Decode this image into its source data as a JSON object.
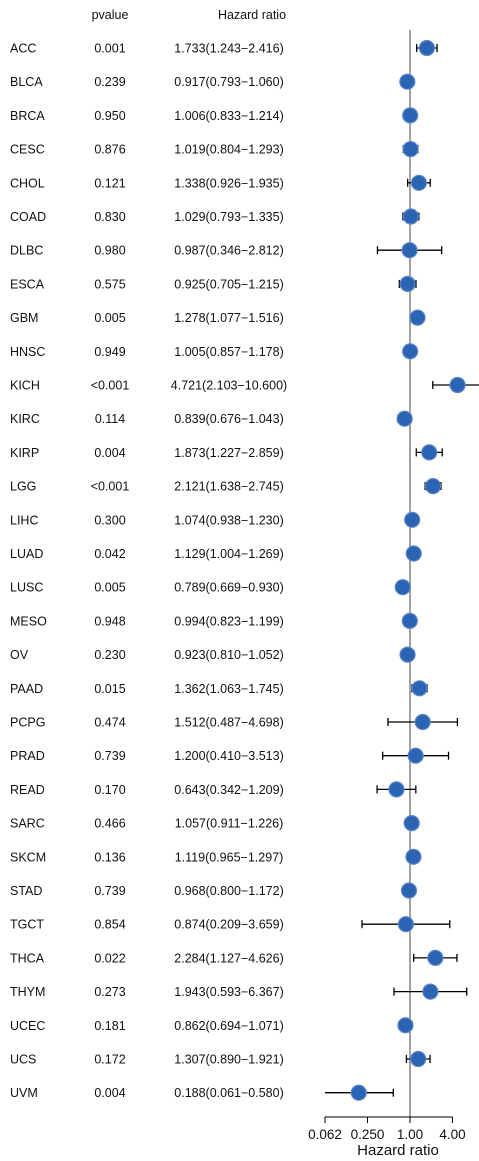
{
  "chart_data": {
    "type": "scatter",
    "subtype": "forest-plot",
    "header": {
      "pvalue": "pvalue",
      "hr": "Hazard ratio"
    },
    "xlabel": "Hazard ratio",
    "x_scale": "log2",
    "xlim": [
      0.0625,
      6.7
    ],
    "ticks": [
      "0.062",
      "0.250",
      "1.00",
      "4.00"
    ],
    "tick_values": [
      0.0625,
      0.25,
      1.0,
      4.0
    ],
    "reference_line": 1.0,
    "point_color": "#2c64b4",
    "rows": [
      {
        "label": "ACC",
        "pvalue": "0.001",
        "hr_text": "1.733(1.243−2.416)",
        "hr": 1.733,
        "lo": 1.243,
        "hi": 2.416
      },
      {
        "label": "BLCA",
        "pvalue": "0.239",
        "hr_text": "0.917(0.793−1.060)",
        "hr": 0.917,
        "lo": 0.793,
        "hi": 1.06
      },
      {
        "label": "BRCA",
        "pvalue": "0.950",
        "hr_text": "1.006(0.833−1.214)",
        "hr": 1.006,
        "lo": 0.833,
        "hi": 1.214
      },
      {
        "label": "CESC",
        "pvalue": "0.876",
        "hr_text": "1.019(0.804−1.293)",
        "hr": 1.019,
        "lo": 0.804,
        "hi": 1.293
      },
      {
        "label": "CHOL",
        "pvalue": "0.121",
        "hr_text": "1.338(0.926−1.935)",
        "hr": 1.338,
        "lo": 0.926,
        "hi": 1.935
      },
      {
        "label": "COAD",
        "pvalue": "0.830",
        "hr_text": "1.029(0.793−1.335)",
        "hr": 1.029,
        "lo": 0.793,
        "hi": 1.335
      },
      {
        "label": "DLBC",
        "pvalue": "0.980",
        "hr_text": "0.987(0.346−2.812)",
        "hr": 0.987,
        "lo": 0.346,
        "hi": 2.812
      },
      {
        "label": "ESCA",
        "pvalue": "0.575",
        "hr_text": "0.925(0.705−1.215)",
        "hr": 0.925,
        "lo": 0.705,
        "hi": 1.215
      },
      {
        "label": "GBM",
        "pvalue": "0.005",
        "hr_text": "1.278(1.077−1.516)",
        "hr": 1.278,
        "lo": 1.077,
        "hi": 1.516
      },
      {
        "label": "HNSC",
        "pvalue": "0.949",
        "hr_text": "1.005(0.857−1.178)",
        "hr": 1.005,
        "lo": 0.857,
        "hi": 1.178
      },
      {
        "label": "KICH",
        "pvalue": "<0.001",
        "hr_text": "4.721(2.103−10.600)",
        "hr": 4.721,
        "lo": 2.103,
        "hi": 10.6
      },
      {
        "label": "KIRC",
        "pvalue": "0.114",
        "hr_text": "0.839(0.676−1.043)",
        "hr": 0.839,
        "lo": 0.676,
        "hi": 1.043
      },
      {
        "label": "KIRP",
        "pvalue": "0.004",
        "hr_text": "1.873(1.227−2.859)",
        "hr": 1.873,
        "lo": 1.227,
        "hi": 2.859
      },
      {
        "label": "LGG",
        "pvalue": "<0.001",
        "hr_text": "2.121(1.638−2.745)",
        "hr": 2.121,
        "lo": 1.638,
        "hi": 2.745
      },
      {
        "label": "LIHC",
        "pvalue": "0.300",
        "hr_text": "1.074(0.938−1.230)",
        "hr": 1.074,
        "lo": 0.938,
        "hi": 1.23
      },
      {
        "label": "LUAD",
        "pvalue": "0.042",
        "hr_text": "1.129(1.004−1.269)",
        "hr": 1.129,
        "lo": 1.004,
        "hi": 1.269
      },
      {
        "label": "LUSC",
        "pvalue": "0.005",
        "hr_text": "0.789(0.669−0.930)",
        "hr": 0.789,
        "lo": 0.669,
        "hi": 0.93
      },
      {
        "label": "MESO",
        "pvalue": "0.948",
        "hr_text": "0.994(0.823−1.199)",
        "hr": 0.994,
        "lo": 0.823,
        "hi": 1.199
      },
      {
        "label": "OV",
        "pvalue": "0.230",
        "hr_text": "0.923(0.810−1.052)",
        "hr": 0.923,
        "lo": 0.81,
        "hi": 1.052
      },
      {
        "label": "PAAD",
        "pvalue": "0.015",
        "hr_text": "1.362(1.063−1.745)",
        "hr": 1.362,
        "lo": 1.063,
        "hi": 1.745
      },
      {
        "label": "PCPG",
        "pvalue": "0.474",
        "hr_text": "1.512(0.487−4.698)",
        "hr": 1.512,
        "lo": 0.487,
        "hi": 4.698
      },
      {
        "label": "PRAD",
        "pvalue": "0.739",
        "hr_text": "1.200(0.410−3.513)",
        "hr": 1.2,
        "lo": 0.41,
        "hi": 3.513
      },
      {
        "label": "READ",
        "pvalue": "0.170",
        "hr_text": "0.643(0.342−1.209)",
        "hr": 0.643,
        "lo": 0.342,
        "hi": 1.209
      },
      {
        "label": "SARC",
        "pvalue": "0.466",
        "hr_text": "1.057(0.911−1.226)",
        "hr": 1.057,
        "lo": 0.911,
        "hi": 1.226
      },
      {
        "label": "SKCM",
        "pvalue": "0.136",
        "hr_text": "1.119(0.965−1.297)",
        "hr": 1.119,
        "lo": 0.965,
        "hi": 1.297
      },
      {
        "label": "STAD",
        "pvalue": "0.739",
        "hr_text": "0.968(0.800−1.172)",
        "hr": 0.968,
        "lo": 0.8,
        "hi": 1.172
      },
      {
        "label": "TGCT",
        "pvalue": "0.854",
        "hr_text": "0.874(0.209−3.659)",
        "hr": 0.874,
        "lo": 0.209,
        "hi": 3.659
      },
      {
        "label": "THCA",
        "pvalue": "0.022",
        "hr_text": "2.284(1.127−4.626)",
        "hr": 2.284,
        "lo": 1.127,
        "hi": 4.626
      },
      {
        "label": "THYM",
        "pvalue": "0.273",
        "hr_text": "1.943(0.593−6.367)",
        "hr": 1.943,
        "lo": 0.593,
        "hi": 6.367
      },
      {
        "label": "UCEC",
        "pvalue": "0.181",
        "hr_text": "0.862(0.694−1.071)",
        "hr": 0.862,
        "lo": 0.694,
        "hi": 1.071
      },
      {
        "label": "UCS",
        "pvalue": "0.172",
        "hr_text": "1.307(0.890−1.921)",
        "hr": 1.307,
        "lo": 0.89,
        "hi": 1.921
      },
      {
        "label": "UVM",
        "pvalue": "0.004",
        "hr_text": "0.188(0.061−0.580)",
        "hr": 0.188,
        "lo": 0.061,
        "hi": 0.58
      }
    ]
  }
}
